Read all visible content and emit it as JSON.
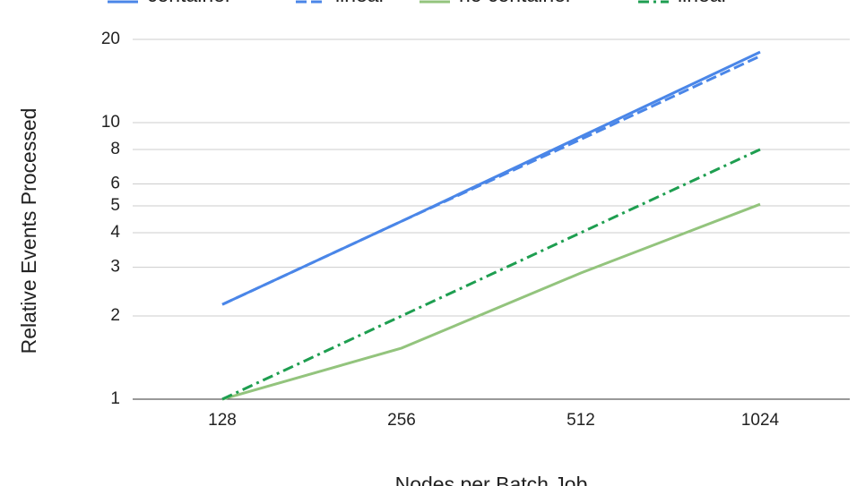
{
  "chart_data": {
    "type": "line",
    "x_label": "Nodes per Batch Job",
    "y_label": "Relative Events Processed",
    "categories": [
      "128",
      "256",
      "512",
      "1024"
    ],
    "series": [
      {
        "name": "container",
        "color": "#4a86e8",
        "dash": "solid",
        "values": [
          2.2,
          4.4,
          8.9,
          18
        ]
      },
      {
        "name": "linear",
        "color": "#4a86e8",
        "dash": "dashed",
        "values": [
          2.2,
          4.4,
          8.7,
          17.4
        ]
      },
      {
        "name": "no container",
        "color": "#93c47d",
        "dash": "solid",
        "values": [
          1,
          1.53,
          2.86,
          5.07
        ]
      },
      {
        "name": "linear",
        "color": "#1e9e50",
        "dash": "dashdot",
        "values": [
          1,
          2,
          4,
          8
        ]
      }
    ],
    "ylim": [
      1,
      20
    ],
    "yticks": [
      1,
      2,
      3,
      4,
      5,
      6,
      8,
      10,
      20
    ],
    "log_y": true,
    "grid": true
  }
}
